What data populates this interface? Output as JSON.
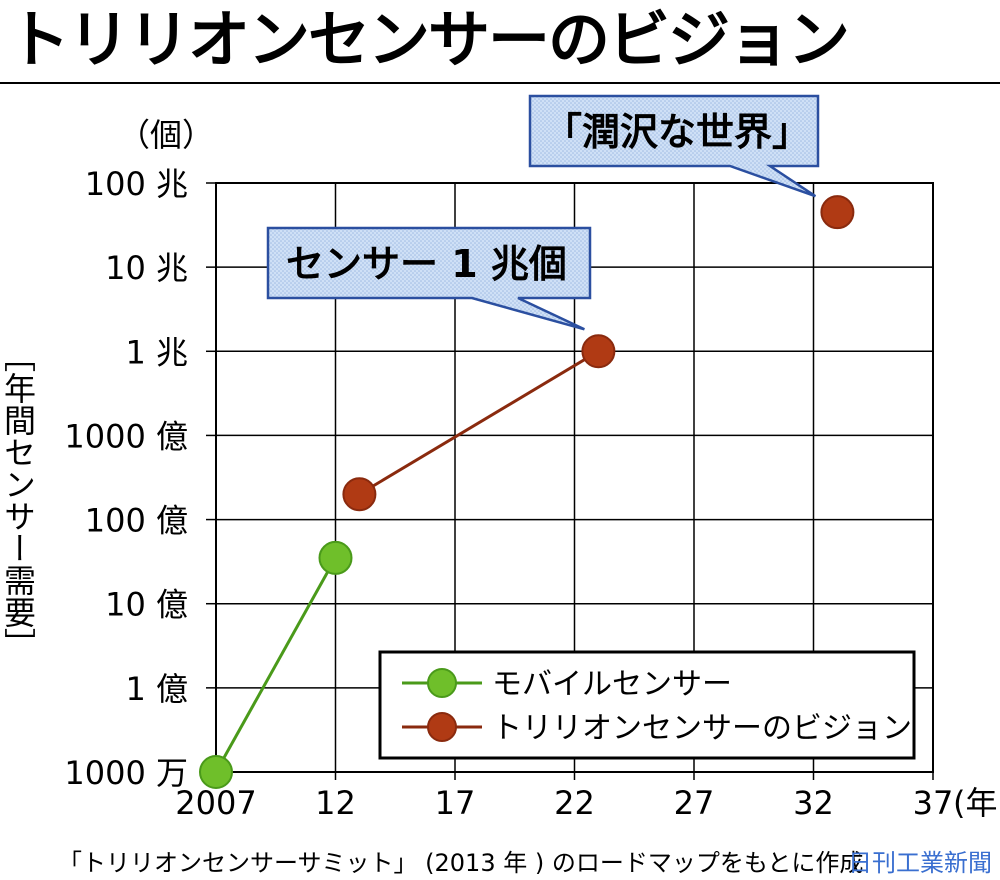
{
  "title": "トリリオンセンサーのビジョン",
  "chart_data": {
    "type": "line",
    "title": "トリリオンセンサーのビジョン",
    "y_unit": "（個）",
    "ylabel": "［年間センサー需要］",
    "x_unit": "(年)",
    "x_ticks": [
      "2007",
      "12",
      "17",
      "22",
      "27",
      "32",
      "37"
    ],
    "x_tick_values": [
      2007,
      2012,
      2017,
      2022,
      2027,
      2032,
      2037
    ],
    "xlim": [
      2007,
      2037
    ],
    "y_scale": "log",
    "ylim": [
      10000000,
      100000000000000
    ],
    "y_ticks": [
      "100 兆",
      "10 兆",
      "1 兆",
      "1000 億",
      "100 億",
      "10 億",
      "1 億",
      "1000 万"
    ],
    "y_tick_values": [
      100000000000000,
      10000000000000,
      1000000000000,
      100000000000,
      10000000000,
      1000000000,
      100000000,
      10000000
    ],
    "grid": true,
    "legend_position": "bottom-right",
    "series": [
      {
        "name": "モバイルセンサー",
        "color": "#6fbf2a",
        "line_color": "#4a9a1a",
        "connected": true,
        "points": [
          {
            "x": 2007,
            "y": 10000000
          },
          {
            "x": 2012,
            "y": 3500000000
          }
        ]
      },
      {
        "name": "トリリオンセンサーのビジョン",
        "color": "#b03a14",
        "line_color": "#8a2a0e",
        "connected": true,
        "points": [
          {
            "x": 2013,
            "y": 20000000000
          },
          {
            "x": 2023,
            "y": 1000000000000
          }
        ]
      },
      {
        "name": "トリリオンセンサーのビジョン",
        "color": "#b03a14",
        "line_color": "#8a2a0e",
        "connected": false,
        "points": [
          {
            "x": 2033,
            "y": 45000000000000
          }
        ]
      }
    ],
    "annotations": [
      {
        "text": "センサー 1 兆個",
        "x": 2023,
        "y": 1000000000000
      },
      {
        "text": "「潤沢な世界」",
        "x": 2033,
        "y": 45000000000000
      }
    ]
  },
  "note": "「トリリオンセンサーサミット」 (2013 年 ) のロードマップをもとに作成",
  "credit": "日刊工業新聞",
  "colors": {
    "grid": "#000000",
    "callout_fill": "#cfe0f6",
    "callout_border": "#2b4fa0"
  }
}
